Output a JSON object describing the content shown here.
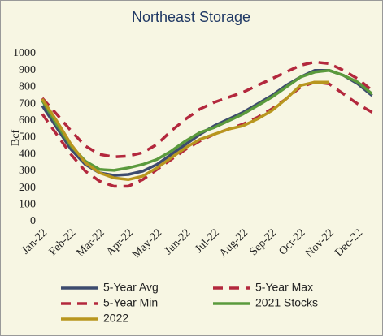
{
  "chart_data": {
    "type": "line",
    "title": "Northeast Storage",
    "y_label": "Bcf",
    "categories": [
      "Jan-22",
      null,
      "Feb-22",
      null,
      "Mar-22",
      null,
      "Apr-22",
      null,
      "May-22",
      null,
      "Jun-22",
      null,
      "Jul-22",
      null,
      "Aug-22",
      null,
      "Sep-22",
      null,
      "Oct-22",
      null,
      "Nov-22",
      null,
      "Dec-22",
      null
    ],
    "series": [
      {
        "name": "5-Year Avg",
        "color": "#3d4b6e",
        "style": "solid",
        "values": [
          690,
          560,
          430,
          340,
          290,
          275,
          280,
          300,
          340,
          400,
          460,
          520,
          570,
          610,
          650,
          700,
          750,
          810,
          860,
          900,
          900,
          870,
          820,
          750
        ]
      },
      {
        "name": "5-Year Max",
        "color": "#b3283d",
        "style": "dashed",
        "values": [
          735,
          640,
          540,
          450,
          400,
          385,
          390,
          410,
          460,
          540,
          610,
          670,
          710,
          740,
          770,
          810,
          850,
          890,
          930,
          950,
          940,
          900,
          850,
          780
        ]
      },
      {
        "name": "5-Year Min",
        "color": "#b3283d",
        "style": "dashed",
        "values": [
          640,
          520,
          400,
          300,
          240,
          210,
          210,
          250,
          310,
          370,
          430,
          480,
          520,
          550,
          580,
          620,
          670,
          730,
          800,
          830,
          820,
          760,
          700,
          650
        ]
      },
      {
        "name": "2021 Stocks",
        "color": "#5a9a3c",
        "style": "solid",
        "values": [
          720,
          580,
          450,
          360,
          310,
          305,
          320,
          340,
          370,
          420,
          480,
          530,
          560,
          600,
          640,
          690,
          740,
          800,
          860,
          890,
          900,
          870,
          830,
          760
        ]
      },
      {
        "name": "2022",
        "color": "#b8961e",
        "style": "solid",
        "values": [
          730,
          600,
          460,
          350,
          290,
          260,
          250,
          270,
          320,
          380,
          440,
          490,
          520,
          550,
          570,
          610,
          660,
          730,
          810,
          830,
          830,
          null,
          null,
          null
        ]
      }
    ],
    "ylim": [
      0,
      1000
    ],
    "yticks": [
      0,
      100,
      200,
      300,
      400,
      500,
      600,
      700,
      800,
      900,
      1000
    ],
    "grid": false
  }
}
